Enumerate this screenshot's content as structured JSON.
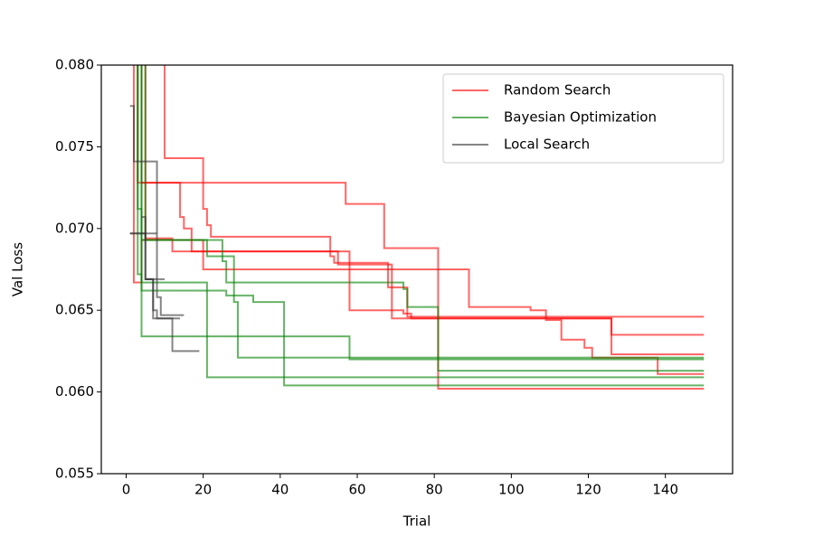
{
  "chart_data": {
    "type": "line",
    "drawstyle": "steps-post",
    "xlabel": "Trial",
    "ylabel": "Val Loss",
    "xlim": [
      -6.45,
      157.45
    ],
    "ylim": [
      0.055,
      0.08
    ],
    "xticks": [
      0,
      20,
      40,
      60,
      80,
      100,
      120,
      140
    ],
    "yticks": [
      {
        "value": 0.055,
        "label": "0.055"
      },
      {
        "value": 0.06,
        "label": "0.060"
      },
      {
        "value": 0.065,
        "label": "0.065"
      },
      {
        "value": 0.07,
        "label": "0.070"
      },
      {
        "value": 0.075,
        "label": "0.075"
      },
      {
        "value": 0.08,
        "label": "0.080"
      }
    ],
    "legend": "upper right",
    "series": [
      {
        "name": "Random Search",
        "color": "#ff0000",
        "runs": [
          {
            "x": [
              1,
              3,
              57,
              67,
              81,
              150
            ],
            "values": [
              0.09,
              0.0728,
              0.0715,
              0.0688,
              0.0602,
              0.0602
            ]
          },
          {
            "x": [
              1,
              10,
              20,
              21,
              22,
              53,
              54,
              68,
              73,
              150
            ],
            "values": [
              0.095,
              0.0743,
              0.0712,
              0.0702,
              0.0695,
              0.0683,
              0.0679,
              0.0664,
              0.0646,
              0.0646
            ]
          },
          {
            "x": [
              1,
              4,
              14,
              15,
              17,
              57,
              58,
              72,
              74,
              126,
              150
            ],
            "values": [
              0.085,
              0.0728,
              0.0707,
              0.07,
              0.0686,
              0.0686,
              0.065,
              0.0648,
              0.0645,
              0.0635,
              0.0635
            ]
          },
          {
            "x": [
              1,
              2,
              4,
              20,
              89,
              105,
              109,
              113,
              119,
              121,
              138,
              150
            ],
            "values": [
              0.085,
              0.0667,
              0.0693,
              0.0675,
              0.0652,
              0.065,
              0.0644,
              0.0632,
              0.0627,
              0.0621,
              0.0611,
              0.0611
            ]
          },
          {
            "x": [
              1,
              5,
              12,
              55,
              69,
              126,
              150
            ],
            "values": [
              0.088,
              0.0694,
              0.0686,
              0.0678,
              0.0645,
              0.0623,
              0.0623
            ]
          }
        ]
      },
      {
        "name": "Bayesian Optimization",
        "color": "#008000",
        "runs": [
          {
            "x": [
              1,
              3,
              4,
              58,
              150
            ],
            "values": [
              0.085,
              0.0672,
              0.0634,
              0.062,
              0.062
            ]
          },
          {
            "x": [
              1,
              3,
              4,
              21,
              150
            ],
            "values": [
              0.085,
              0.0712,
              0.0667,
              0.0609,
              0.0609
            ]
          },
          {
            "x": [
              1,
              4,
              26,
              28,
              29,
              150
            ],
            "values": [
              0.085,
              0.0662,
              0.0659,
              0.0655,
              0.0621,
              0.0621
            ]
          },
          {
            "x": [
              1,
              4,
              21,
              28,
              33,
              41,
              150
            ],
            "values": [
              0.085,
              0.0693,
              0.0683,
              0.0659,
              0.0655,
              0.0604,
              0.0604
            ]
          },
          {
            "x": [
              1,
              5,
              25,
              26,
              72,
              73,
              81,
              150
            ],
            "values": [
              0.085,
              0.0693,
              0.068,
              0.0667,
              0.0663,
              0.0652,
              0.0613,
              0.0613
            ]
          }
        ]
      },
      {
        "name": "Local Search",
        "color": "#333333",
        "runs": [
          {
            "x": [
              1,
              2,
              7,
              8,
              9,
              15
            ],
            "values": [
              0.0775,
              0.0741,
              0.0741,
              0.0658,
              0.0647,
              0.0647
            ]
          },
          {
            "x": [
              1,
              4,
              5,
              7,
              12,
              19
            ],
            "values": [
              0.0697,
              0.0697,
              0.0669,
              0.0645,
              0.0625,
              0.0625
            ]
          },
          {
            "x": [
              1,
              8
            ],
            "values": [
              0.0697,
              0.0697
            ]
          },
          {
            "x": [
              4,
              5,
              10
            ],
            "values": [
              0.0707,
              0.0669,
              0.0669
            ]
          },
          {
            "x": [
              5,
              7,
              8,
              14
            ],
            "values": [
              0.0669,
              0.065,
              0.0645,
              0.0645
            ]
          }
        ]
      }
    ]
  }
}
